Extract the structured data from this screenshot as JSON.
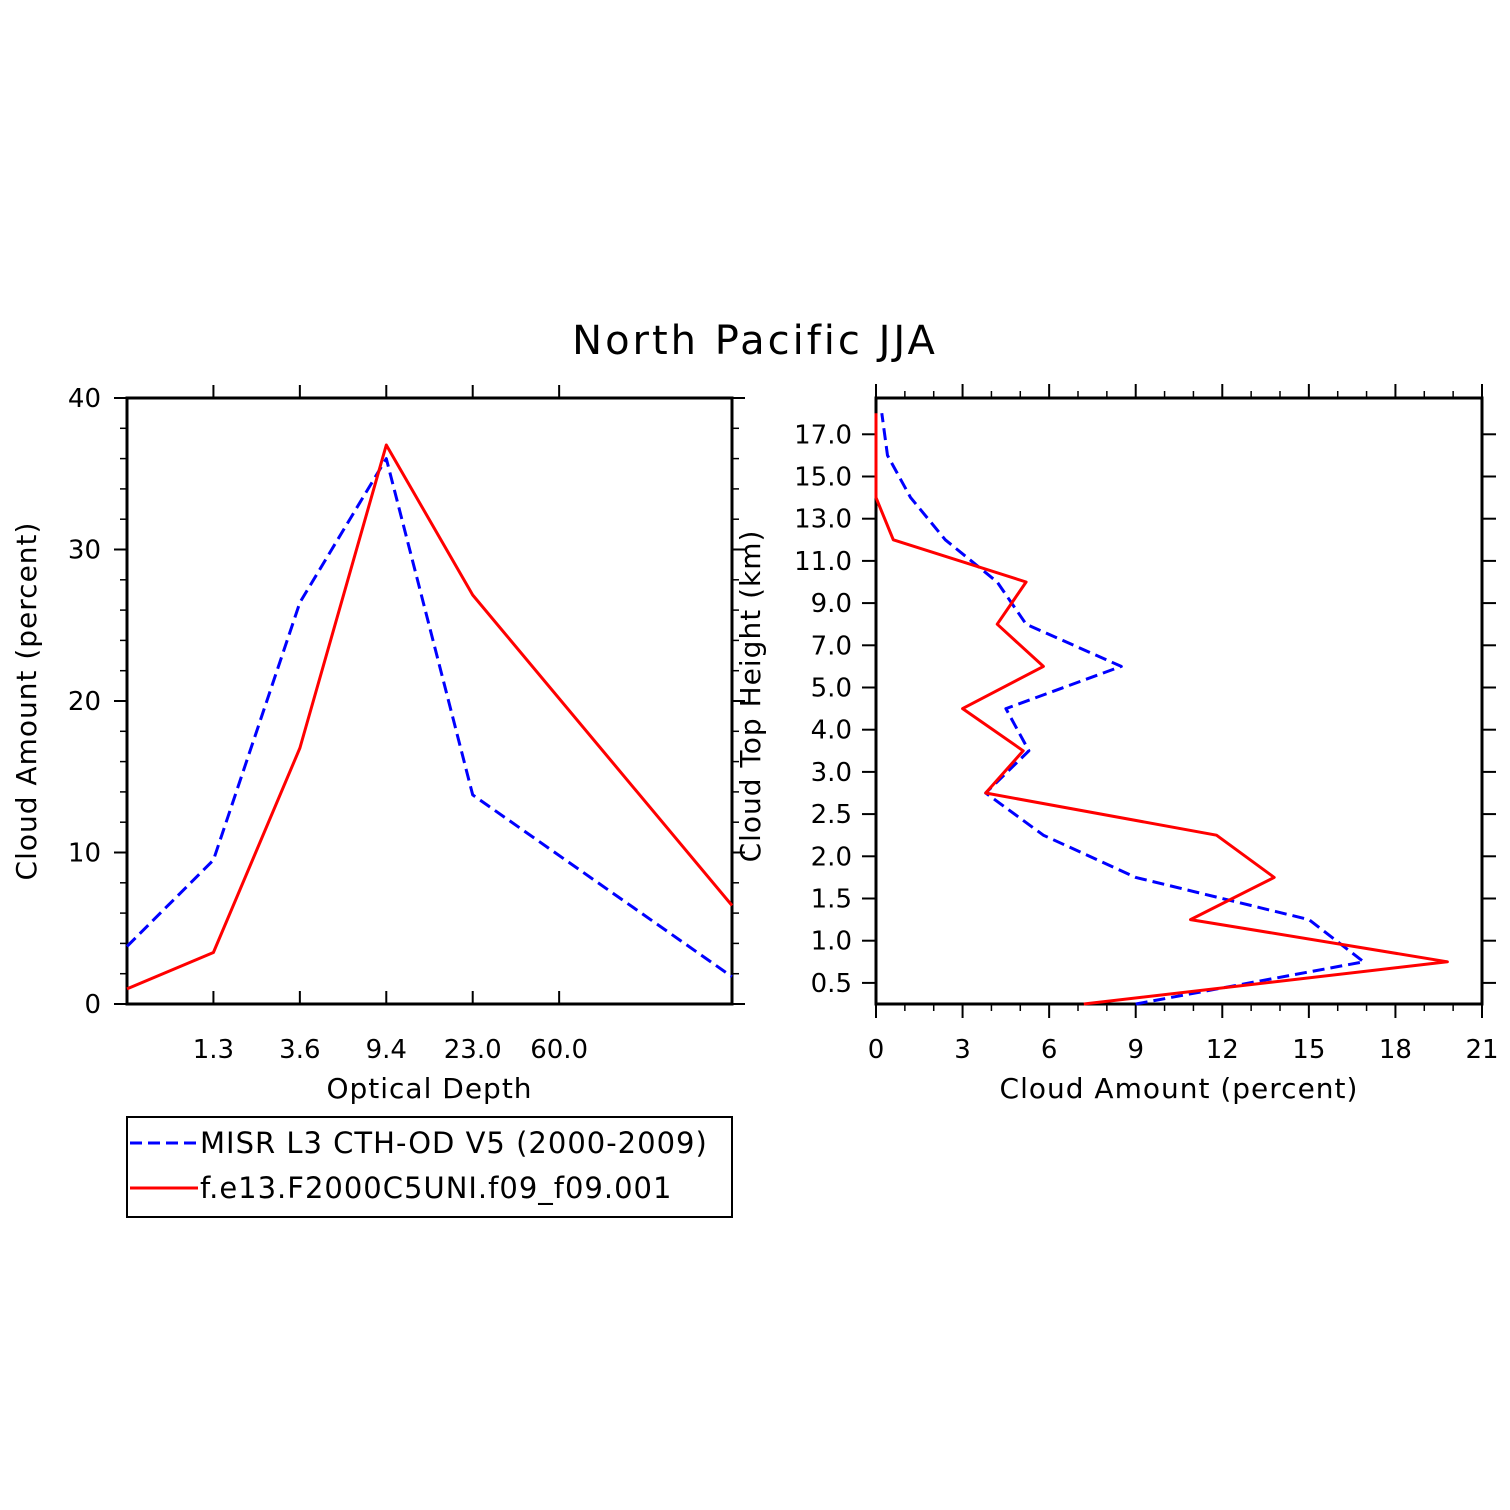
{
  "figure_title": "North Pacific JJA",
  "legend": {
    "entries": [
      {
        "label": "MISR L3 CTH-OD V5 (2000-2009)",
        "color": "#0000ff",
        "dash": true
      },
      {
        "label": "f.e13.F2000C5UNI.f09_f09.001",
        "color": "#ff0000",
        "dash": false
      }
    ]
  },
  "chart_data": [
    {
      "type": "line",
      "xlabel": "Optical Depth",
      "ylabel": "Cloud Amount (percent)",
      "x_tick_labels": [
        "1.3",
        "3.6",
        "9.4",
        "23.0",
        "60.0"
      ],
      "x_bins": 7,
      "y_ticks": [
        0,
        10,
        20,
        30,
        40
      ],
      "ylim": [
        0,
        40
      ],
      "series": [
        {
          "name": "MISR L3 CTH-OD V5 (2000-2009)",
          "color": "#0000ff",
          "dash": true,
          "values": [
            3.8,
            9.5,
            26.5,
            36.0,
            13.8,
            1.8
          ]
        },
        {
          "name": "f.e13.F2000C5UNI.f09_f09.001",
          "color": "#ff0000",
          "dash": false,
          "values": [
            1.0,
            3.4,
            16.9,
            36.9,
            27.0,
            6.5
          ]
        }
      ]
    },
    {
      "type": "line",
      "xlabel": "Cloud Amount (percent)",
      "ylabel": "Cloud Top Height (km)",
      "x_ticks": [
        0,
        3,
        6,
        9,
        12,
        15,
        18,
        21
      ],
      "xlim": [
        0,
        21
      ],
      "y_tick_labels": [
        "0.5",
        "1.0",
        "1.5",
        "2.0",
        "2.5",
        "3.0",
        "4.0",
        "5.0",
        "7.0",
        "9.0",
        "11.0",
        "13.0",
        "15.0",
        "17.0"
      ],
      "series": [
        {
          "name": "MISR L3 CTH-OD V5 (2000-2009)",
          "color": "#0000ff",
          "dash": true,
          "values": [
            9.0,
            16.9,
            15.0,
            9.0,
            5.8,
            3.8,
            5.3,
            4.5,
            8.5,
            5.2,
            4.2,
            2.4,
            1.2,
            0.4,
            0.2
          ]
        },
        {
          "name": "f.e13.F2000C5UNI.f09_f09.001",
          "color": "#ff0000",
          "dash": false,
          "values": [
            7.2,
            19.8,
            10.9,
            13.8,
            11.8,
            3.8,
            5.1,
            3.0,
            5.8,
            4.2,
            5.2,
            0.6,
            0.0,
            0.0,
            0.0
          ]
        }
      ]
    }
  ]
}
